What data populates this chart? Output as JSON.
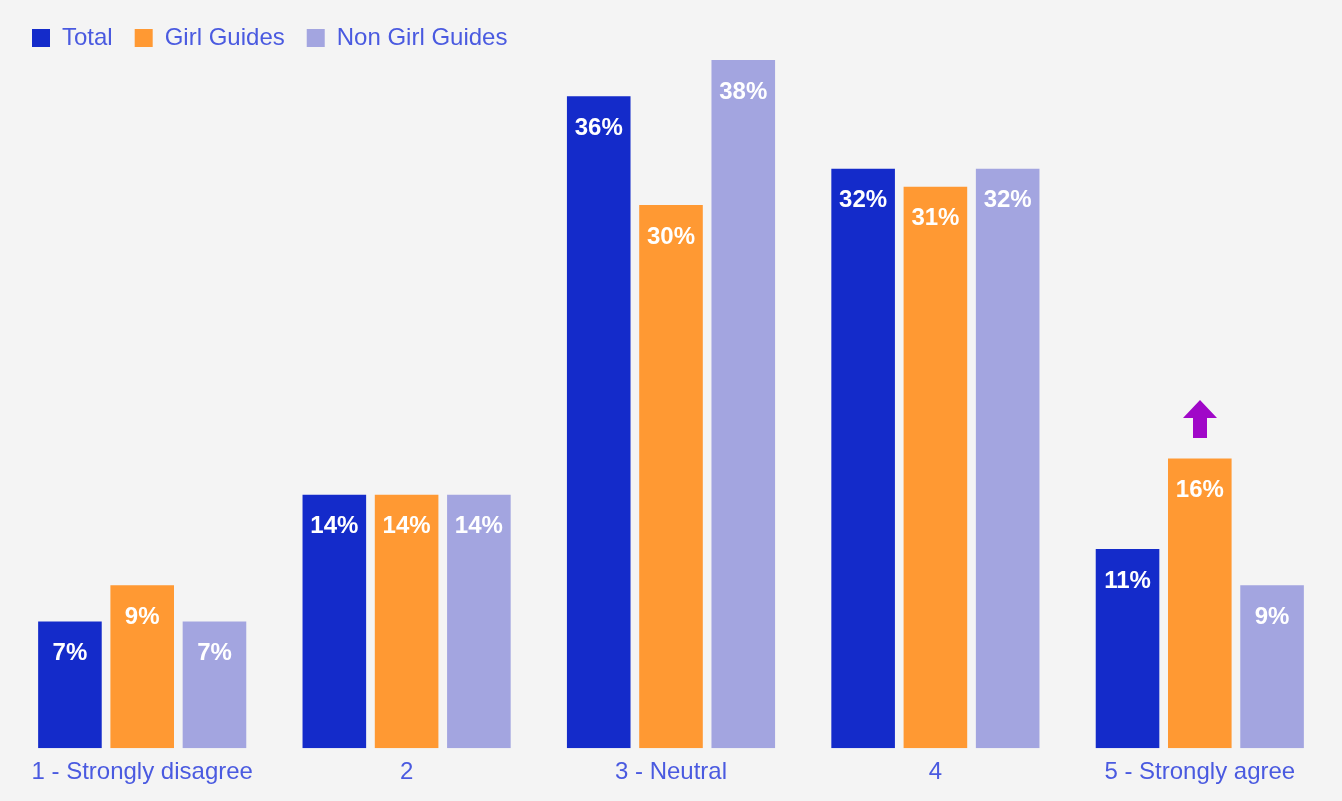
{
  "chart_data": {
    "type": "bar",
    "categories": [
      "1 - Strongly disagree",
      "2",
      "3 - Neutral",
      "4",
      "5 - Strongly agree"
    ],
    "series": [
      {
        "name": "Total",
        "color": "#142bca",
        "values": [
          7,
          14,
          36,
          32,
          11
        ],
        "value_labels": [
          "7%",
          "14%",
          "36%",
          "32%",
          "11%"
        ]
      },
      {
        "name": "Girl Guides",
        "color": "#ff9933",
        "values": [
          9,
          14,
          30,
          31,
          16
        ],
        "value_labels": [
          "9%",
          "14%",
          "30%",
          "31%",
          "16%"
        ]
      },
      {
        "name": "Non Girl Guides",
        "color": "#a3a5e0",
        "values": [
          7,
          14,
          38,
          32,
          9
        ],
        "value_labels": [
          "7%",
          "14%",
          "38%",
          "32%",
          "9%"
        ]
      }
    ],
    "legend": "top left",
    "grid": false
  }
}
